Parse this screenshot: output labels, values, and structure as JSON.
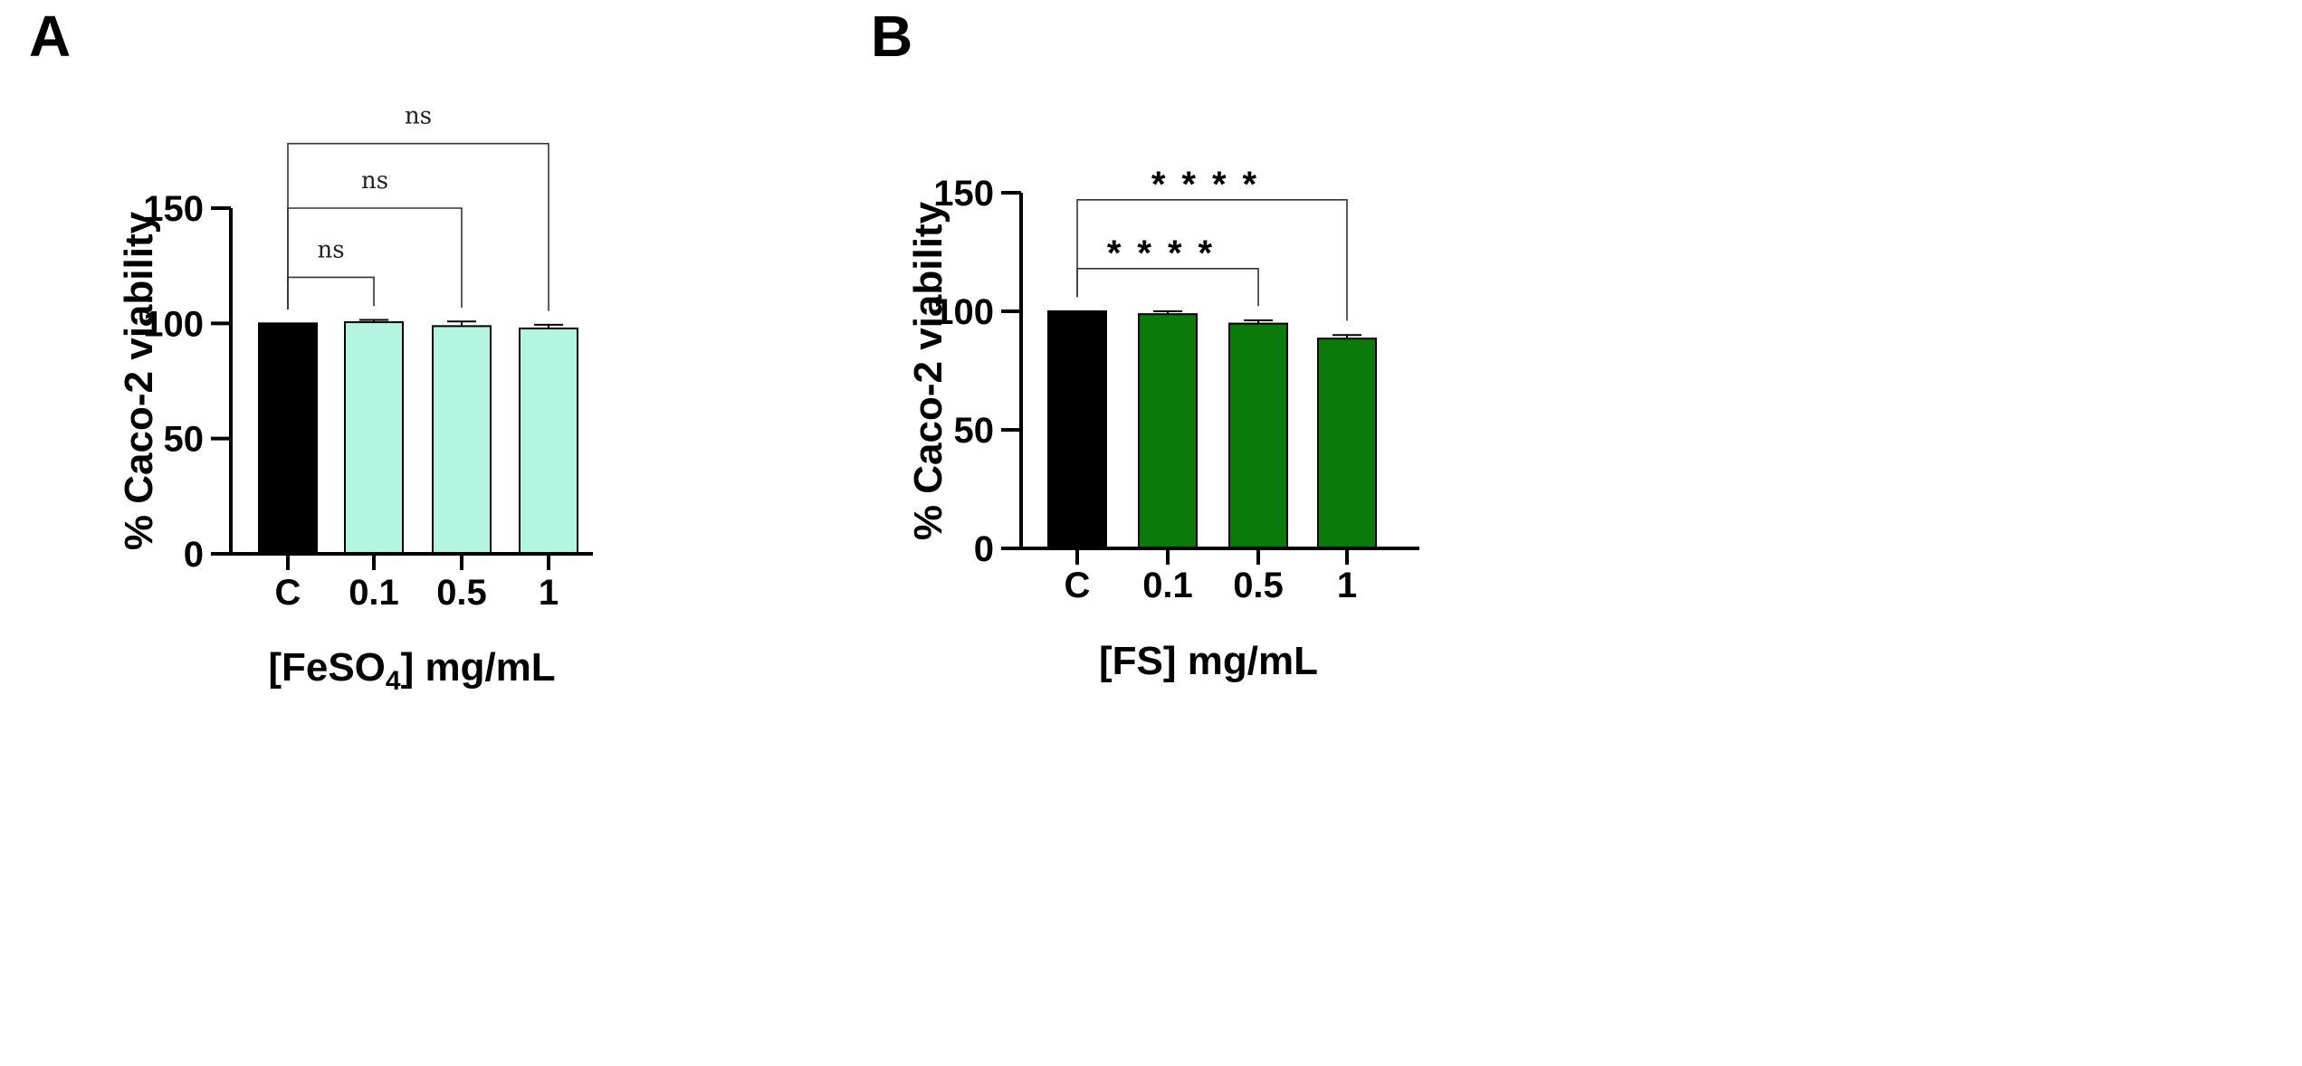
{
  "chart_data": [
    {
      "panel": "A",
      "type": "bar",
      "categories": [
        "C",
        "0.1",
        "0.5",
        "1"
      ],
      "values": [
        100,
        100.5,
        98.8,
        97.8
      ],
      "errors": [
        0,
        1.0,
        2.0,
        1.6
      ],
      "bar_colors": [
        "#000000",
        "#b3f5e0",
        "#b3f5e0",
        "#b3f5e0"
      ],
      "xlabel": "[FeSO",
      "xlabel_sub": "4",
      "xlabel_suffix": "] mg/mL",
      "ylabel": "% Caco-2 viability",
      "ylim": [
        0,
        150
      ],
      "yticks": [
        0,
        50,
        100,
        150
      ],
      "comparisons": [
        {
          "from": 0,
          "to": 1,
          "label": "ns",
          "level": 120
        },
        {
          "from": 0,
          "to": 2,
          "label": "ns",
          "level": 150
        },
        {
          "from": 0,
          "to": 3,
          "label": "ns",
          "level": 178
        }
      ]
    },
    {
      "panel": "B",
      "type": "bar",
      "categories": [
        "C",
        "0.1",
        "0.5",
        "1"
      ],
      "values": [
        100,
        98.8,
        94.8,
        88.5
      ],
      "errors": [
        0,
        1.2,
        1.4,
        1.5
      ],
      "bar_colors": [
        "#000000",
        "#0a7a0a",
        "#0a7a0a",
        "#0a7a0a"
      ],
      "xlabel": "[FS] mg/mL",
      "xlabel_sub": "",
      "xlabel_suffix": "",
      "ylabel": "% Caco-2 viability",
      "ylim": [
        0,
        150
      ],
      "yticks": [
        0,
        50,
        100,
        150
      ],
      "comparisons": [
        {
          "from": 0,
          "to": 2,
          "label": "****",
          "level": 118
        },
        {
          "from": 0,
          "to": 3,
          "label": "****",
          "level": 147
        }
      ]
    }
  ]
}
